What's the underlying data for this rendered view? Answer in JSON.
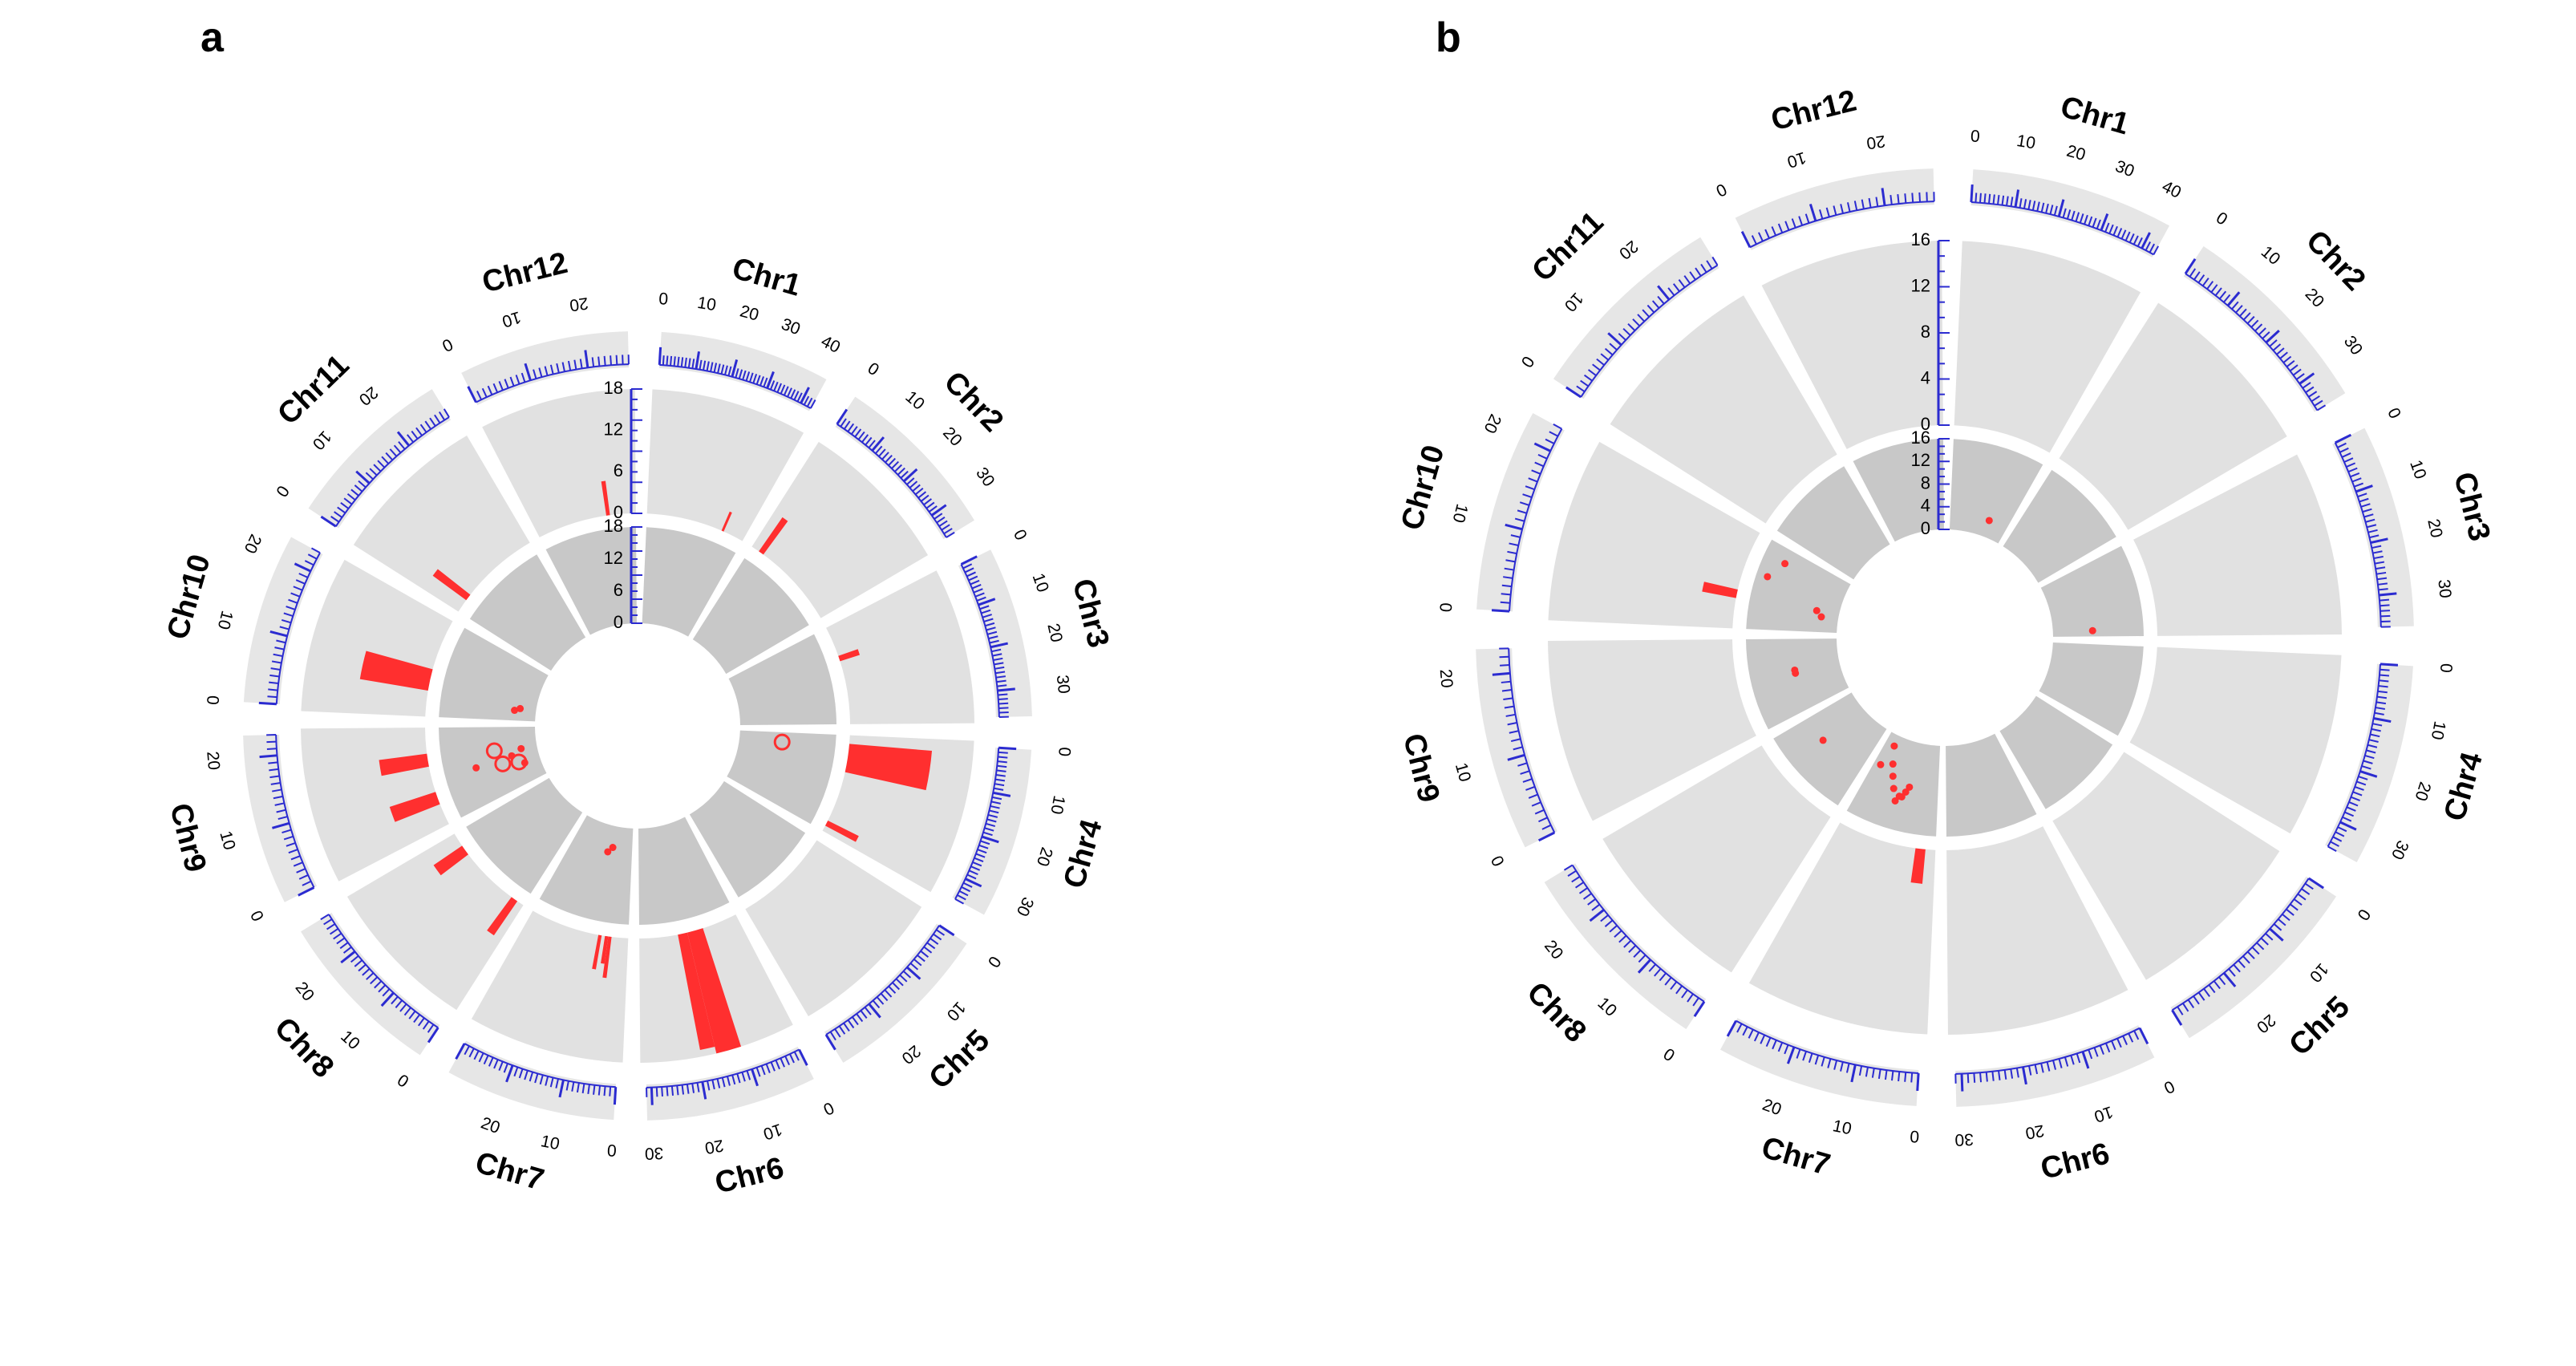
{
  "colors": {
    "outer_track": "#e1e1e1",
    "inner_track": "#c8c8c8",
    "ideogram": "#e6e6e6",
    "tick": "#2b2bd0",
    "highlight": "#ff2f2f",
    "text": "#000000"
  },
  "chart_data": [
    {
      "type": "circos",
      "label": "a",
      "chromosomes": [
        {
          "name": "Chr1",
          "length": 43,
          "ticks": [
            "0",
            "10",
            "20",
            "30",
            "40"
          ]
        },
        {
          "name": "Chr2",
          "length": 36,
          "ticks": [
            "0",
            "10",
            "20",
            "30"
          ]
        },
        {
          "name": "Chr3",
          "length": 36,
          "ticks": [
            "0",
            "10",
            "20",
            "30"
          ]
        },
        {
          "name": "Chr4",
          "length": 35,
          "ticks": [
            "0",
            "10",
            "20",
            "30"
          ]
        },
        {
          "name": "Chr5",
          "length": 30,
          "ticks": [
            "0",
            "10",
            "20"
          ]
        },
        {
          "name": "Chr6",
          "length": 31,
          "ticks": [
            "0",
            "10",
            "20",
            "30"
          ]
        },
        {
          "name": "Chr7",
          "length": 30,
          "ticks": [
            "0",
            "10",
            "20"
          ]
        },
        {
          "name": "Chr8",
          "length": 28,
          "ticks": [
            "0",
            "10",
            "20"
          ]
        },
        {
          "name": "Chr9",
          "length": 23,
          "ticks": [
            "0",
            "10",
            "20"
          ]
        },
        {
          "name": "Chr10",
          "length": 23,
          "ticks": [
            "0",
            "10",
            "20"
          ]
        },
        {
          "name": "Chr11",
          "length": 29,
          "ticks": [
            "0",
            "10",
            "20"
          ]
        },
        {
          "name": "Chr12",
          "length": 27,
          "ticks": [
            "0",
            "10",
            "20"
          ]
        }
      ],
      "outer_track": {
        "axis_ticks": [
          "0",
          "6",
          "12",
          "18"
        ],
        "range": [
          0,
          18
        ],
        "bars": [
          {
            "chr": "Chr1",
            "start": 33,
            "end": 34,
            "value": 3
          },
          {
            "chr": "Chr2",
            "start": 3,
            "end": 5,
            "value": 6
          },
          {
            "chr": "Chr3",
            "start": 11,
            "end": 13,
            "value": 3
          },
          {
            "chr": "Chr4",
            "start": 3,
            "end": 13,
            "value": 12
          },
          {
            "chr": "Chr4",
            "start": 31,
            "end": 33,
            "value": 5
          },
          {
            "chr": "Chr6",
            "start": 11,
            "end": 16,
            "value": 18
          },
          {
            "chr": "Chr6",
            "start": 16,
            "end": 19,
            "value": 17
          },
          {
            "chr": "Chr7",
            "start": 5,
            "end": 6,
            "value": 6
          },
          {
            "chr": "Chr7",
            "start": 6,
            "end": 7,
            "value": 4
          },
          {
            "chr": "Chr7",
            "start": 8,
            "end": 9,
            "value": 5
          },
          {
            "chr": "Chr8",
            "start": 21,
            "end": 24,
            "value": 5
          },
          {
            "chr": "Chr8",
            "start": 2,
            "end": 4,
            "value": 6
          },
          {
            "chr": "Chr9",
            "start": 5,
            "end": 8,
            "value": 7
          },
          {
            "chr": "Chr9",
            "start": 14,
            "end": 17,
            "value": 7
          },
          {
            "chr": "Chr10",
            "start": 6,
            "end": 11,
            "value": 10
          },
          {
            "chr": "Chr11",
            "start": 4,
            "end": 6,
            "value": 6
          },
          {
            "chr": "Chr12",
            "start": 19,
            "end": 20,
            "value": 5
          }
        ]
      },
      "inner_track": {
        "axis_ticks": [
          "0",
          "6",
          "12",
          "18"
        ],
        "range": [
          0,
          18
        ],
        "points": [
          {
            "chr": "Chr4",
            "pos": 5,
            "value": 8,
            "size": "large"
          },
          {
            "chr": "Chr7",
            "pos": 10,
            "value": 4,
            "size": "small"
          },
          {
            "chr": "Chr7",
            "pos": 12,
            "value": 5,
            "size": "small"
          },
          {
            "chr": "Chr9",
            "pos": 8,
            "value": 3,
            "size": "small"
          },
          {
            "chr": "Chr9",
            "pos": 9,
            "value": 4,
            "size": "large"
          },
          {
            "chr": "Chr9",
            "pos": 10,
            "value": 7,
            "size": "large"
          },
          {
            "chr": "Chr9",
            "pos": 12,
            "value": 5,
            "size": "small"
          },
          {
            "chr": "Chr9",
            "pos": 11,
            "value": 12,
            "size": "small"
          },
          {
            "chr": "Chr9",
            "pos": 15,
            "value": 8,
            "size": "large"
          },
          {
            "chr": "Chr9",
            "pos": 14,
            "value": 3,
            "size": "small"
          },
          {
            "chr": "Chr10",
            "pos": 5,
            "value": 3,
            "size": "small"
          },
          {
            "chr": "Chr10",
            "pos": 4,
            "value": 4,
            "size": "small"
          }
        ]
      }
    },
    {
      "type": "circos",
      "label": "b",
      "chromosomes": [
        {
          "name": "Chr1",
          "length": 43,
          "ticks": [
            "0",
            "10",
            "20",
            "30",
            "40"
          ]
        },
        {
          "name": "Chr2",
          "length": 36,
          "ticks": [
            "0",
            "10",
            "20",
            "30"
          ]
        },
        {
          "name": "Chr3",
          "length": 36,
          "ticks": [
            "0",
            "10",
            "20",
            "30"
          ]
        },
        {
          "name": "Chr4",
          "length": 35,
          "ticks": [
            "0",
            "10",
            "20",
            "30"
          ]
        },
        {
          "name": "Chr5",
          "length": 30,
          "ticks": [
            "0",
            "10",
            "20"
          ]
        },
        {
          "name": "Chr6",
          "length": 31,
          "ticks": [
            "0",
            "10",
            "20",
            "30"
          ]
        },
        {
          "name": "Chr7",
          "length": 30,
          "ticks": [
            "0",
            "10",
            "20"
          ]
        },
        {
          "name": "Chr8",
          "length": 28,
          "ticks": [
            "0",
            "10",
            "20"
          ]
        },
        {
          "name": "Chr9",
          "length": 23,
          "ticks": [
            "0",
            "10",
            "20"
          ]
        },
        {
          "name": "Chr10",
          "length": 23,
          "ticks": [
            "0",
            "10",
            "20"
          ]
        },
        {
          "name": "Chr11",
          "length": 29,
          "ticks": [
            "0",
            "10",
            "20"
          ]
        },
        {
          "name": "Chr12",
          "length": 27,
          "ticks": [
            "0",
            "10",
            "20"
          ]
        }
      ],
      "outer_track": {
        "axis_ticks": [
          "0",
          "4",
          "8",
          "12",
          "16"
        ],
        "range": [
          0,
          16
        ],
        "bars": [
          {
            "chr": "Chr7",
            "start": 3,
            "end": 6,
            "value": 3
          },
          {
            "chr": "Chr10",
            "start": 7,
            "end": 9,
            "value": 3
          }
        ]
      },
      "inner_track": {
        "axis_ticks": [
          "0",
          "4",
          "8",
          "12",
          "16"
        ],
        "range": [
          0,
          16
        ],
        "points": [
          {
            "chr": "Chr1",
            "pos": 29,
            "value": 3,
            "size": "small"
          },
          {
            "chr": "Chr3",
            "pos": 33,
            "value": 7,
            "size": "small"
          },
          {
            "chr": "Chr7",
            "pos": 12,
            "value": 8,
            "size": "small"
          },
          {
            "chr": "Chr7",
            "pos": 13,
            "value": 9,
            "size": "small"
          },
          {
            "chr": "Chr7",
            "pos": 14,
            "value": 10,
            "size": "small"
          },
          {
            "chr": "Chr7",
            "pos": 15,
            "value": 10,
            "size": "small"
          },
          {
            "chr": "Chr7",
            "pos": 16,
            "value": 11,
            "size": "small"
          },
          {
            "chr": "Chr7",
            "pos": 18,
            "value": 9,
            "size": "small"
          },
          {
            "chr": "Chr7",
            "pos": 20,
            "value": 7,
            "size": "small"
          },
          {
            "chr": "Chr7",
            "pos": 22,
            "value": 5,
            "size": "small"
          },
          {
            "chr": "Chr7",
            "pos": 25,
            "value": 2,
            "size": "small"
          },
          {
            "chr": "Chr7",
            "pos": 27,
            "value": 6,
            "size": "small"
          },
          {
            "chr": "Chr8",
            "pos": 18,
            "value": 9,
            "size": "small"
          },
          {
            "chr": "Chr9",
            "pos": 12,
            "value": 8,
            "size": "small"
          },
          {
            "chr": "Chr9",
            "pos": 13,
            "value": 8,
            "size": "small"
          },
          {
            "chr": "Chr10",
            "pos": 6,
            "value": 3,
            "size": "small"
          },
          {
            "chr": "Chr10",
            "pos": 8,
            "value": 4,
            "size": "small"
          },
          {
            "chr": "Chr10",
            "pos": 14,
            "value": 14,
            "size": "small"
          },
          {
            "chr": "Chr10",
            "pos": 19,
            "value": 12,
            "size": "small"
          }
        ]
      }
    }
  ]
}
